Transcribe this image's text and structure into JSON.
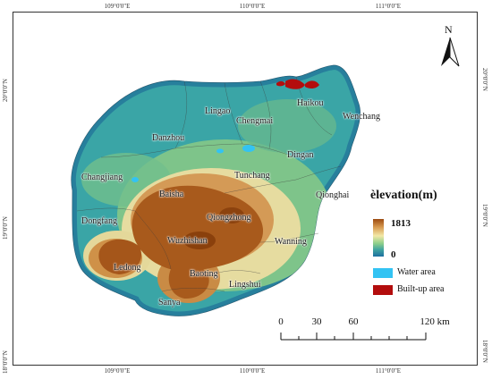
{
  "graticule": {
    "top": [
      "109°0'0\"E",
      "110°0'0\"E",
      "111°0'0\"E"
    ],
    "bottom": [
      "109°0'0\"E",
      "110°0'0\"E",
      "111°0'0\"E"
    ],
    "left": [
      "20°0'0\"N",
      "19°0'0\"N",
      "18°0'0\"N"
    ],
    "right": [
      "20°0'0\"N",
      "19°0'0\"N",
      "18°0'0\"N"
    ]
  },
  "cities": {
    "haikou": "Haikou",
    "lingao": "Lingao",
    "chengmai": "Chengmai",
    "wenchang": "Wenchang",
    "danzhou": "Danzhou",
    "dingan": "Dingan",
    "tunchang": "Tunchang",
    "changjiang": "Changjiang",
    "qionghai": "Qionghai",
    "baisha": "Baisha",
    "qiongzhong": "Qiongzhong",
    "dongfang": "Dongfang",
    "wuzhishan": "Wuzhishan",
    "wanning": "Wanning",
    "ledong": "Ledong",
    "baoting": "Baoting",
    "lingshui": "Lingshui",
    "sanya": "Sanya"
  },
  "legend": {
    "title": "èlevation(m)",
    "max_label": "1813",
    "min_label": "0",
    "water_label": "Water area",
    "builtup_label": "Built-up area",
    "water_color": "#33c3f3",
    "builtup_color": "#b30d0d"
  },
  "scale_bar": {
    "ticks": [
      "0",
      "30",
      "60",
      "120 km"
    ]
  },
  "north_arrow": {
    "label": "N",
    "icon": "north-arrow-icon"
  }
}
